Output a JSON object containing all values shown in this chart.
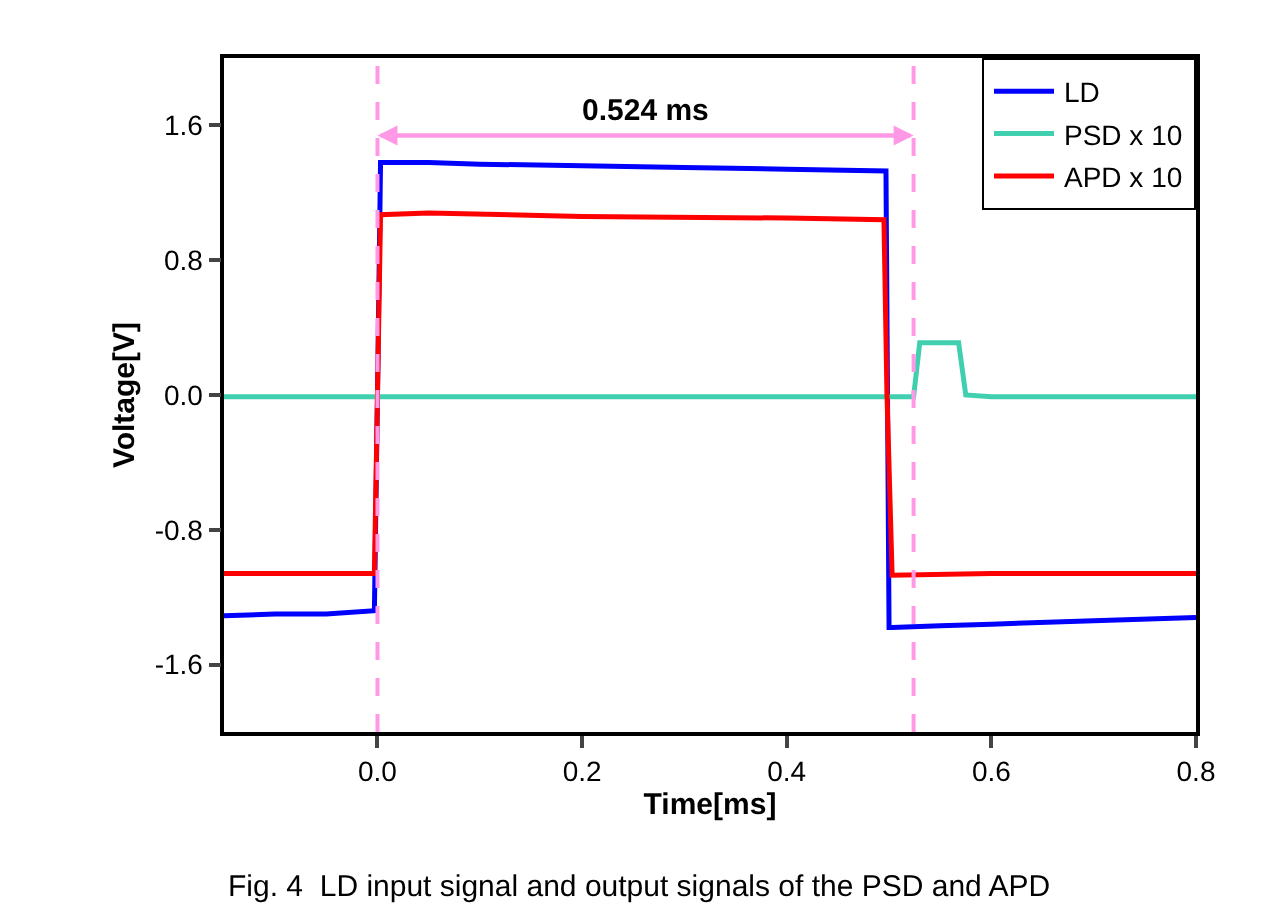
{
  "chart_data": {
    "type": "line",
    "xlabel": "Time[ms]",
    "ylabel": "Voltage[V]",
    "xlim": [
      -0.15,
      0.8
    ],
    "xticks": [
      {
        "value": 0,
        "label": "0.0"
      },
      0.2,
      0.4,
      0.6,
      0.8
    ],
    "ylim": [
      -2.0,
      2.0
    ],
    "yticks": [
      -1.6,
      -0.8,
      {
        "value": 0,
        "label": "0.0"
      },
      0.8,
      1.6
    ],
    "legend": "top right",
    "marker": "none",
    "line_style": "solid",
    "series": [
      {
        "name": "LD",
        "color": "#0000ff",
        "x": [
          -0.15,
          -0.1,
          -0.05,
          -0.003,
          0.0,
          0.003,
          0.05,
          0.1,
          0.2,
          0.3,
          0.4,
          0.497,
          0.5,
          0.503,
          0.55,
          0.6,
          0.7,
          0.8
        ],
        "values": [
          -1.31,
          -1.3,
          -1.3,
          -1.28,
          0.0,
          1.38,
          1.38,
          1.37,
          1.36,
          1.35,
          1.34,
          1.33,
          -1.38,
          -1.38,
          -1.37,
          -1.36,
          -1.34,
          -1.32
        ]
      },
      {
        "name": "PSD x 10",
        "color": "#40d0b0",
        "x": [
          -0.15,
          0.0,
          0.2,
          0.4,
          0.524,
          0.53,
          0.568,
          0.575,
          0.6,
          0.7,
          0.8
        ],
        "values": [
          -0.01,
          -0.01,
          -0.01,
          -0.01,
          -0.01,
          0.31,
          0.31,
          0.0,
          -0.01,
          -0.01,
          -0.01
        ]
      },
      {
        "name": "APD x 10",
        "color": "#ff0000",
        "x": [
          -0.15,
          -0.1,
          -0.003,
          0.0,
          0.003,
          0.05,
          0.2,
          0.4,
          0.495,
          0.498,
          0.503,
          0.6,
          0.8
        ],
        "values": [
          -1.06,
          -1.06,
          -1.06,
          0.0,
          1.07,
          1.08,
          1.06,
          1.05,
          1.04,
          0.0,
          -1.07,
          -1.06,
          -1.06
        ]
      }
    ],
    "ref_lines": [
      {
        "axis": "x",
        "value": 0,
        "color": "#ff99e6",
        "line_style": "dashed"
      },
      {
        "axis": "x",
        "value": 0.524,
        "color": "#ff99e6",
        "line_style": "dashed"
      }
    ],
    "annotations": [
      "0.524 ms",
      "Fig. 4  LD input signal and output signals of the PSD and APD"
    ]
  }
}
